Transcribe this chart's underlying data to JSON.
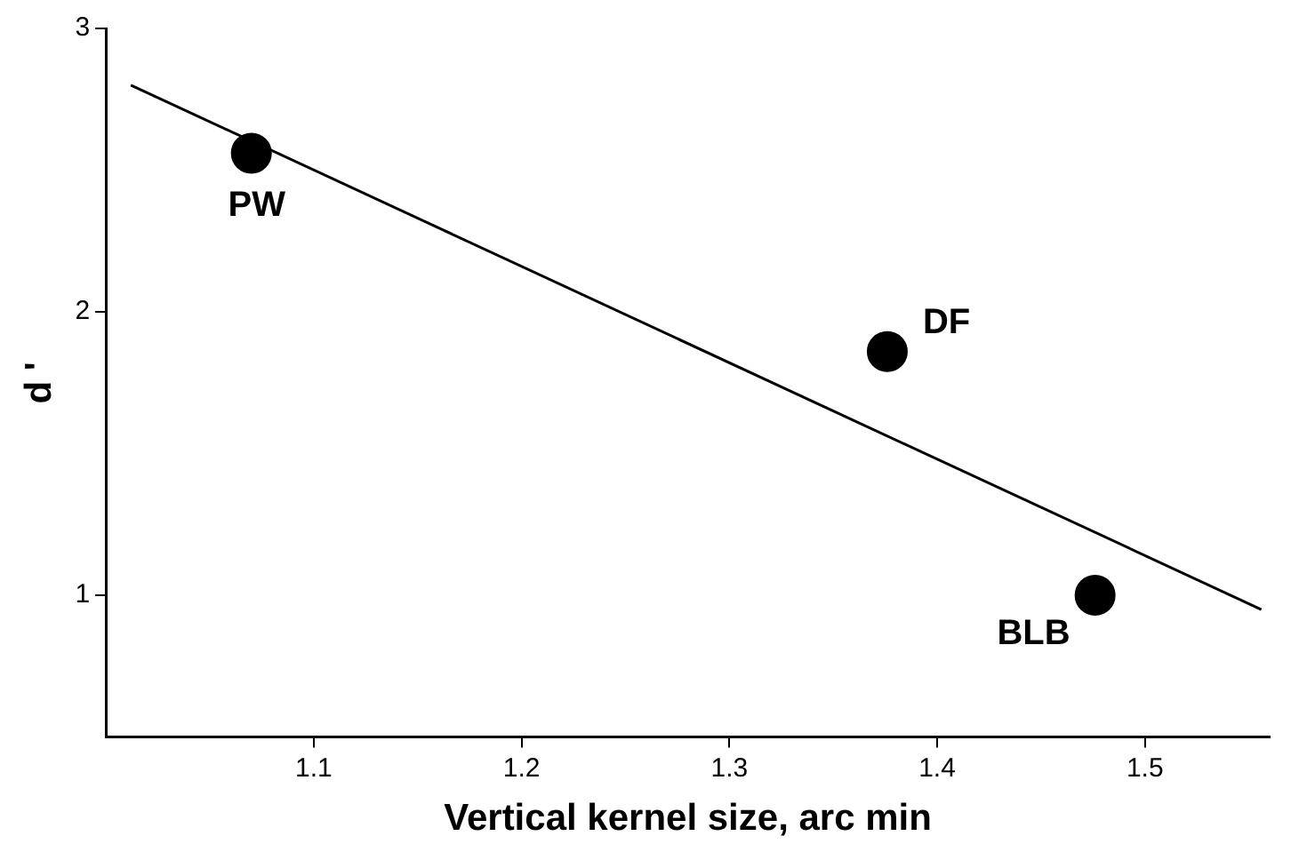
{
  "chart_data": {
    "type": "scatter",
    "xlabel": "Vertical kernel size, arc min",
    "ylabel": "d '",
    "series": [
      {
        "color": "#000000",
        "x": [
          1.07,
          1.376,
          1.476
        ],
        "values": [
          2.56,
          1.86,
          1.0
        ],
        "marker": "circle"
      },
      {
        "type": "line",
        "color": "#000000",
        "x": [
          1.012,
          1.556
        ],
        "values": [
          2.8,
          0.95
        ],
        "marker": "none",
        "line_style": "solid"
      }
    ],
    "annotations": [
      {
        "text": "PW",
        "x": 1.07,
        "y": 2.56
      },
      {
        "text": "DF",
        "x": 1.376,
        "y": 1.86
      },
      {
        "text": "BLB",
        "x": 1.476,
        "y": 1.0
      }
    ],
    "xlim": [
      1.0,
      1.56
    ],
    "xticks": [
      1.1,
      1.2,
      1.3,
      1.4,
      1.5
    ],
    "ylim": [
      0.5,
      3
    ],
    "yticks": [
      1,
      2,
      3
    ],
    "grid": false,
    "legend": false
  }
}
